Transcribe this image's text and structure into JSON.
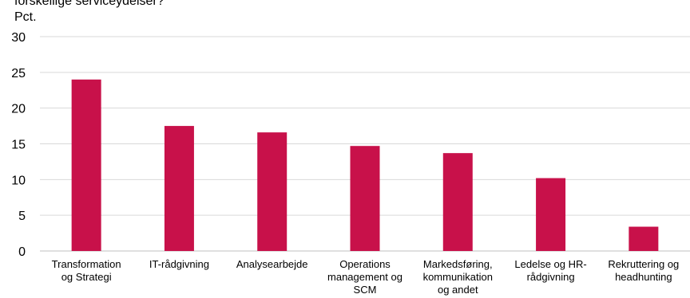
{
  "chart_data": {
    "type": "bar",
    "title": "forskellige serviceydelser?",
    "unit_label": "Pct.",
    "categories": [
      [
        "Transformation",
        "og Strategi"
      ],
      [
        "IT-rådgivning"
      ],
      [
        "Analysearbejde"
      ],
      [
        "Operations",
        "management og",
        "SCM"
      ],
      [
        "Markedsføring,",
        "kommunikation",
        "og andet"
      ],
      [
        "Ledelse og HR-",
        "rådgivning"
      ],
      [
        "Rekruttering og",
        "headhunting"
      ]
    ],
    "values": [
      24.0,
      17.5,
      16.6,
      14.7,
      13.7,
      10.2,
      3.4
    ],
    "ylim": [
      0,
      30
    ],
    "yticks": [
      0,
      5,
      10,
      15,
      20,
      25,
      30
    ],
    "bar_color": "#c8114a",
    "grid": true,
    "legend": "none"
  }
}
